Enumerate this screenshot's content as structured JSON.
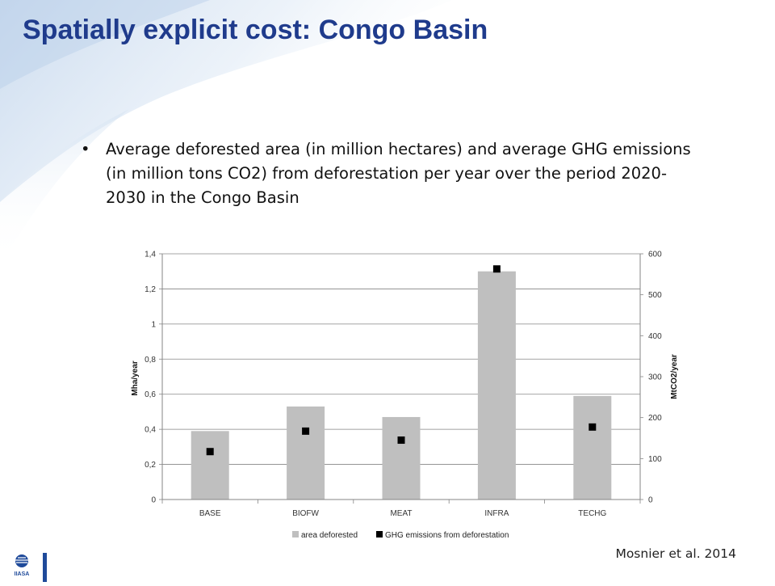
{
  "slide": {
    "title": "Spatially explicit cost: Congo Basin",
    "bullet_symbol": "•",
    "bullet_text": "Average deforested area (in million hectares) and average GHG emissions (in million tons CO2) from deforestation per year over the period 2020-2030 in the Congo Basin",
    "citation": "Mosnier et al. 2014",
    "logo_text": "IIASA"
  },
  "colors": {
    "title": "#1f3b8c",
    "bar_fill": "#bfbfbf",
    "marker_fill": "#000000",
    "gridline": "#868686",
    "axis": "#868686",
    "logo_blue": "#1f4a9a",
    "bg_swoosh": "#dce8f4"
  },
  "chart_data": {
    "type": "bar",
    "categories": [
      "BASE",
      "BIOFW",
      "MEAT",
      "INFRA",
      "TECHG"
    ],
    "series": [
      {
        "name": "area deforested",
        "type": "bar",
        "axis": "left",
        "values": [
          0.39,
          0.53,
          0.47,
          1.3,
          0.59
        ]
      },
      {
        "name": "GHG emissions from deforestation",
        "type": "marker",
        "axis": "right",
        "values": [
          117,
          167,
          145,
          563,
          177
        ]
      }
    ],
    "y_left": {
      "label": "Mha/year",
      "ylim": [
        0,
        1.4
      ],
      "ticks": [
        "0",
        "0,2",
        "0,4",
        "0,6",
        "0,8",
        "1",
        "1,2",
        "1,4"
      ]
    },
    "y_right": {
      "label": "MtCO2/year",
      "ylim": [
        0,
        600
      ],
      "ticks": [
        "0",
        "100",
        "200",
        "300",
        "400",
        "500",
        "600"
      ]
    },
    "xlabel": "",
    "grid": true,
    "legend_position": "bottom"
  }
}
